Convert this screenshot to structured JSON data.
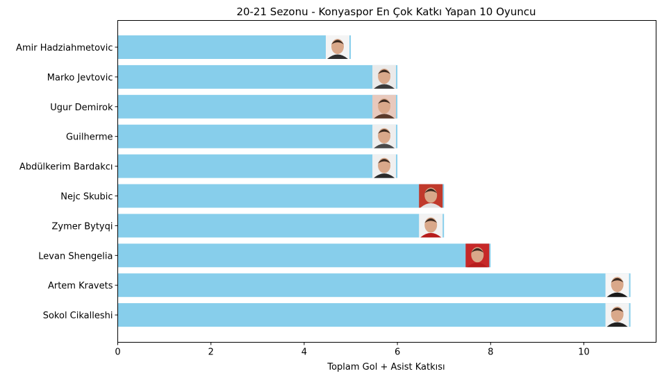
{
  "chart_data": {
    "type": "bar",
    "orientation": "horizontal",
    "title": "20-21 Sezonu - Konyaspor En Çok Katkı Yapan 10 Oyuncu",
    "xlabel": "Toplam Gol + Asist Katkısı",
    "ylabel": "",
    "xlim": [
      0,
      11.55
    ],
    "xticks": [
      0,
      2,
      4,
      6,
      8,
      10
    ],
    "grid": false,
    "categories": [
      "Amir Hadziahmetovic",
      "Marko Jevtovic",
      "Ugur Demirok",
      "Guilherme",
      "Abdülkerim Bardakcı",
      "Nejc Skubic",
      "Zymer Bytyqi",
      "Levan Shengelia",
      "Artem Kravets",
      "Sokol Cikalleshi"
    ],
    "values": [
      5,
      6,
      6,
      6,
      6,
      7,
      7,
      8,
      11,
      11
    ],
    "bar_color": "#87ceeb",
    "player_photos": [
      "player-photo",
      "player-photo",
      "player-photo",
      "player-photo",
      "player-photo",
      "player-photo",
      "player-photo",
      "player-photo",
      "player-photo",
      "player-photo"
    ]
  }
}
